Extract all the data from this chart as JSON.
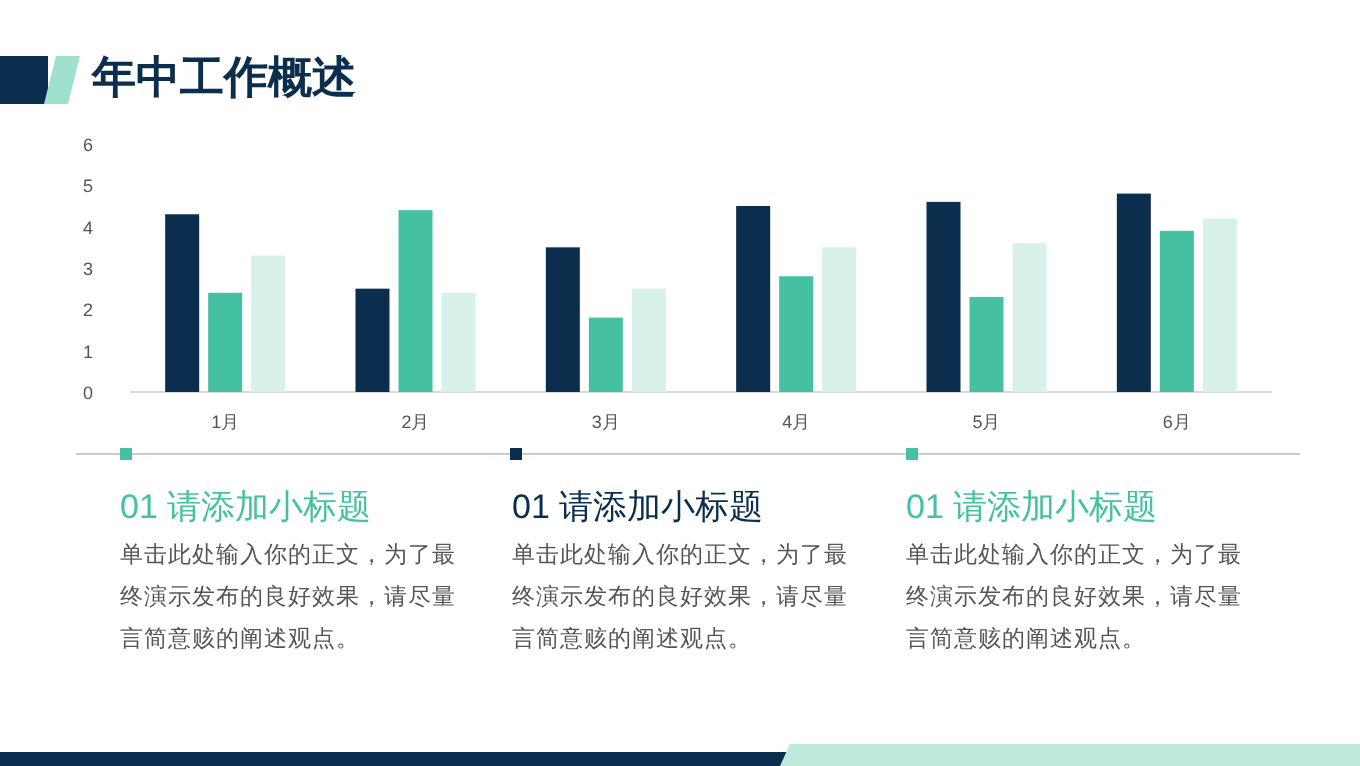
{
  "chart_data": {
    "type": "bar",
    "title": "年中工作概述",
    "categories": [
      "1月",
      "2月",
      "3月",
      "4月",
      "5月",
      "6月"
    ],
    "series": [
      {
        "color": "#0b2d4e",
        "values": [
          4.3,
          2.5,
          3.5,
          4.5,
          4.6,
          4.8
        ]
      },
      {
        "color": "#45c1a1",
        "values": [
          2.4,
          4.4,
          1.8,
          2.8,
          2.3,
          3.9
        ]
      },
      {
        "color": "#d8f1eb",
        "values": [
          3.3,
          2.4,
          2.5,
          3.5,
          3.6,
          4.2
        ]
      }
    ],
    "ylim": [
      0,
      6
    ],
    "yticks": [
      0,
      1,
      2,
      3,
      4,
      5,
      6
    ],
    "annotations": [
      "01 请添加小标题",
      "单击此处输入你的正文，为了最终演示发布的良好效果，请尽量言简意赅的阐述观点。",
      "01 请添加小标题",
      "单击此处输入你的正文，为了最终演示发布的良好效果，请尽量言简意赅的阐述观点。",
      "01 请添加小标题",
      "单击此处输入你的正文，为了最终演示发布的良好效果，请尽量言简意赅的阐述观点。"
    ]
  }
}
